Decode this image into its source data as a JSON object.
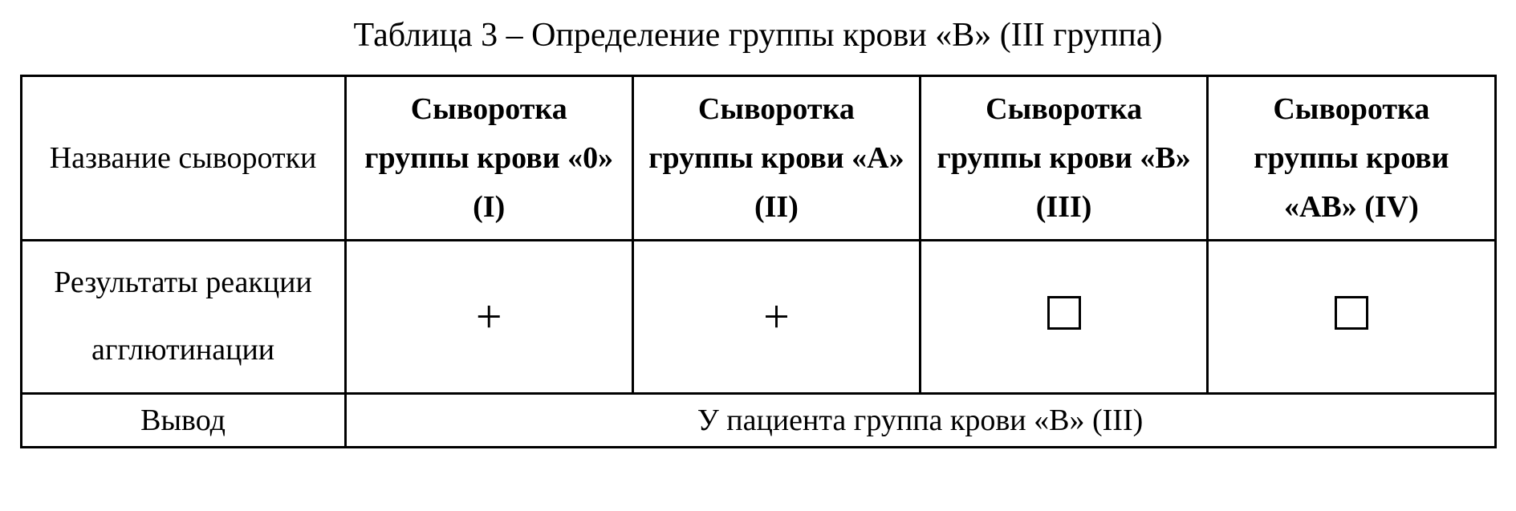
{
  "title": "Таблица 3 – Определение группы крови «В» (III группа)",
  "table": {
    "columns": [
      {
        "label": "Название сыворотки",
        "bold": false
      },
      {
        "label": "Сыворотка группы крови «0» (I)",
        "bold": true
      },
      {
        "label": "Сыворотка группы крови «А» (II)",
        "bold": true
      },
      {
        "label": "Сыворотка группы крови «В» (III)",
        "bold": true
      },
      {
        "label": "Сыворотка группы крови «АВ» (IV)",
        "bold": true
      }
    ],
    "results_row": {
      "label": "Результаты реакции агглютинации",
      "cells": [
        {
          "type": "plus",
          "value": "+"
        },
        {
          "type": "plus",
          "value": "+"
        },
        {
          "type": "box",
          "value": ""
        },
        {
          "type": "box",
          "value": ""
        }
      ]
    },
    "conclusion_row": {
      "label": "Вывод",
      "text": "У пациента группа крови «В» (III)"
    },
    "border_color": "#000000",
    "background_color": "#ffffff",
    "text_color": "#000000",
    "title_fontsize": 42,
    "cell_fontsize": 38,
    "symbol_fontsize": 58,
    "font_family": "Times New Roman"
  }
}
